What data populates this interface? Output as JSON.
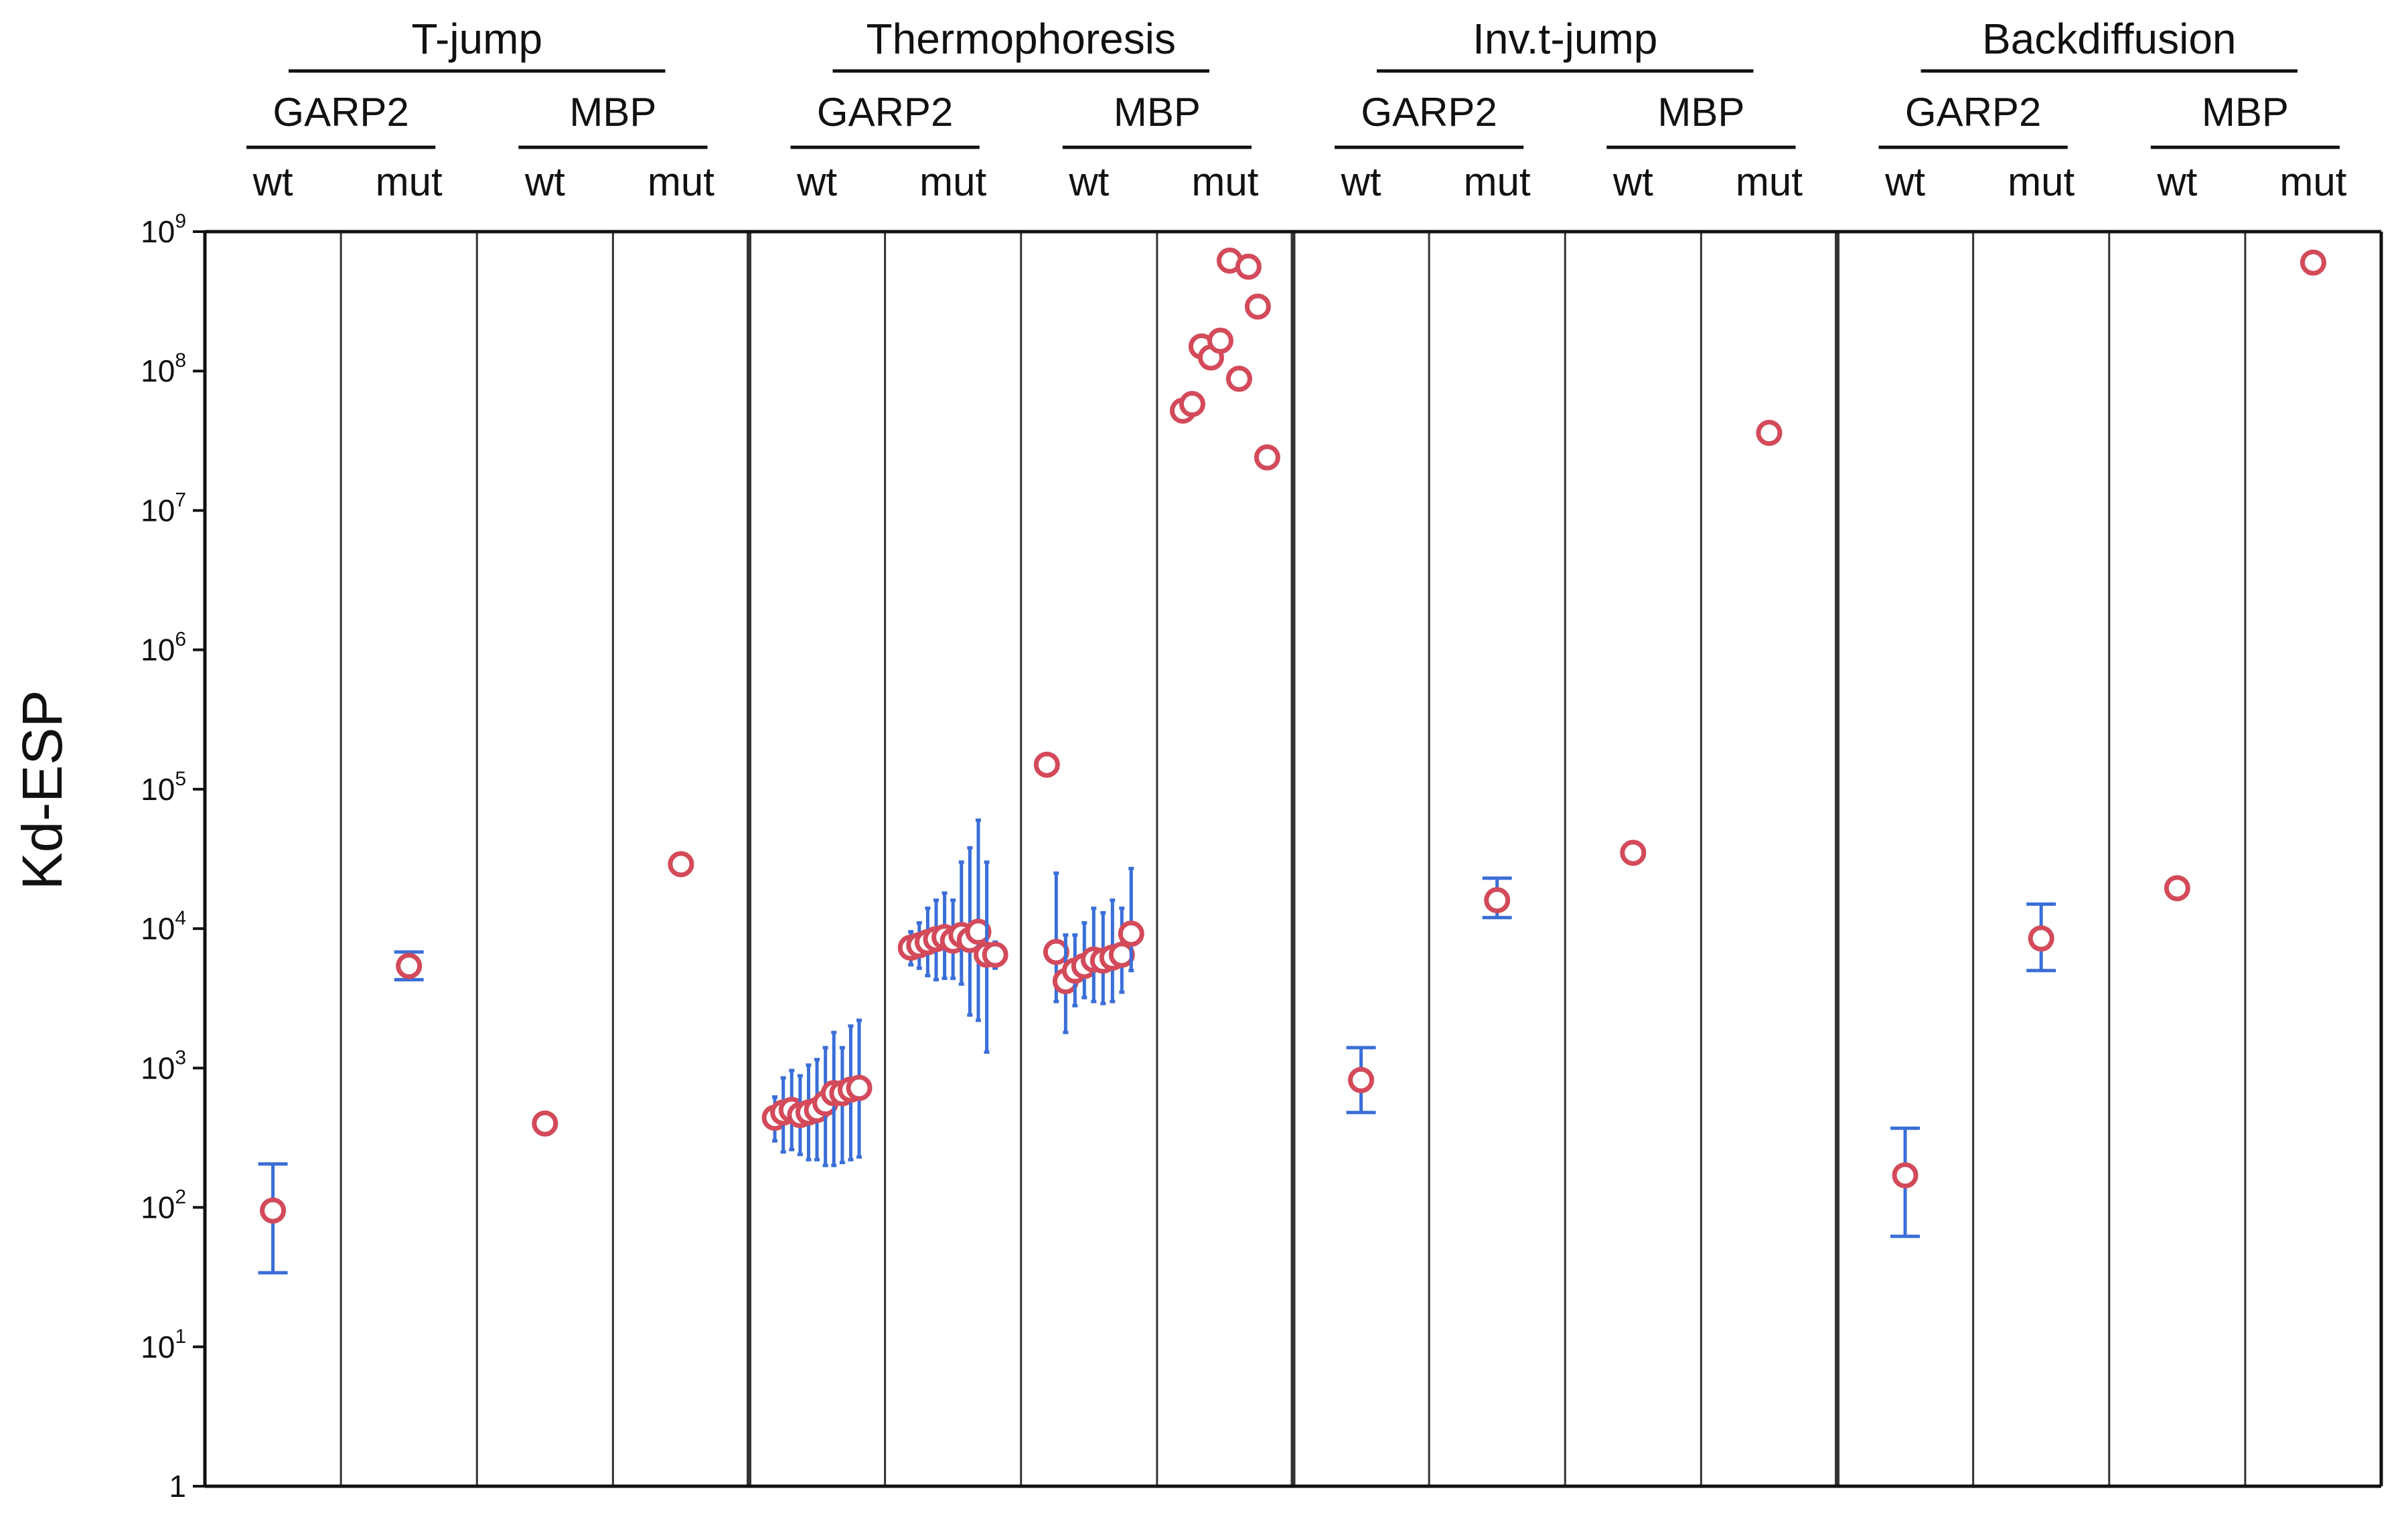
{
  "chart_data": {
    "type": "scatter",
    "title": "",
    "xlabel": "",
    "ylabel": "Kd-ESP",
    "yscale": "log10",
    "ylim": [
      1,
      1000000000
    ],
    "yticks": [
      {
        "value": 1,
        "base": "1",
        "exp": ""
      },
      {
        "value": 10,
        "base": "10",
        "exp": "1"
      },
      {
        "value": 100,
        "base": "10",
        "exp": "2"
      },
      {
        "value": 1000,
        "base": "10",
        "exp": "3"
      },
      {
        "value": 10000,
        "base": "10",
        "exp": "4"
      },
      {
        "value": 100000,
        "base": "10",
        "exp": "5"
      },
      {
        "value": 1000000,
        "base": "10",
        "exp": "6"
      },
      {
        "value": 10000000,
        "base": "10",
        "exp": "7"
      },
      {
        "value": 100000000,
        "base": "10",
        "exp": "8"
      },
      {
        "value": 1000000000,
        "base": "10",
        "exp": "9"
      }
    ],
    "colors": {
      "marker": "#d34a5a",
      "errorbar": "#3a6ed8",
      "axis": "#111111",
      "separator": "#333333"
    },
    "methods": [
      {
        "name": "T-jump",
        "proteins": [
          {
            "name": "GARP2",
            "variants": [
              {
                "label": "wt",
                "points": [
                  {
                    "y": 95,
                    "lo": 34,
                    "hi": 205
                  }
                ]
              },
              {
                "label": "mut",
                "points": [
                  {
                    "y": 5400,
                    "lo": 4300,
                    "hi": 6800
                  }
                ]
              }
            ]
          },
          {
            "name": "MBP",
            "variants": [
              {
                "label": "wt",
                "points": [
                  {
                    "y": 400
                  }
                ]
              },
              {
                "label": "mut",
                "points": [
                  {
                    "y": 29000
                  }
                ]
              }
            ]
          }
        ]
      },
      {
        "name": "Thermophoresis",
        "proteins": [
          {
            "name": "GARP2",
            "variants": [
              {
                "label": "wt",
                "points": [
                  {
                    "y": 440,
                    "lo": 300,
                    "hi": 620
                  },
                  {
                    "y": 480,
                    "lo": 250,
                    "hi": 850
                  },
                  {
                    "y": 500,
                    "lo": 260,
                    "hi": 960
                  },
                  {
                    "y": 460,
                    "lo": 240,
                    "hi": 880
                  },
                  {
                    "y": 480,
                    "lo": 220,
                    "hi": 1050
                  },
                  {
                    "y": 500,
                    "lo": 220,
                    "hi": 1150
                  },
                  {
                    "y": 560,
                    "lo": 200,
                    "hi": 1400
                  },
                  {
                    "y": 660,
                    "lo": 200,
                    "hi": 1800
                  },
                  {
                    "y": 660,
                    "lo": 210,
                    "hi": 1400
                  },
                  {
                    "y": 700,
                    "lo": 220,
                    "hi": 2000
                  },
                  {
                    "y": 720,
                    "lo": 230,
                    "hi": 2200
                  }
                ]
              },
              {
                "label": "mut",
                "points": [
                  {
                    "y": 7300,
                    "lo": 5500,
                    "hi": 9500
                  },
                  {
                    "y": 7600,
                    "lo": 5200,
                    "hi": 11000
                  },
                  {
                    "y": 8000,
                    "lo": 4600,
                    "hi": 14000
                  },
                  {
                    "y": 8400,
                    "lo": 4300,
                    "hi": 16000
                  },
                  {
                    "y": 8700,
                    "lo": 4400,
                    "hi": 18000
                  },
                  {
                    "y": 8200,
                    "lo": 4400,
                    "hi": 16000
                  },
                  {
                    "y": 9000,
                    "lo": 4000,
                    "hi": 30000
                  },
                  {
                    "y": 8300,
                    "lo": 2400,
                    "hi": 38000
                  },
                  {
                    "y": 9500,
                    "lo": 2200,
                    "hi": 60000
                  },
                  {
                    "y": 6500,
                    "lo": 1300,
                    "hi": 30000
                  },
                  {
                    "y": 6500,
                    "lo": 5200,
                    "hi": 8000
                  }
                ]
              }
            ]
          },
          {
            "name": "MBP",
            "variants": [
              {
                "label": "wt",
                "points": [
                  {
                    "y": 150000
                  },
                  {
                    "y": 6800,
                    "lo": 3000,
                    "hi": 25000
                  },
                  {
                    "y": 4200,
                    "lo": 1800,
                    "hi": 9000
                  },
                  {
                    "y": 5000,
                    "lo": 2800,
                    "hi": 9000
                  },
                  {
                    "y": 5400,
                    "lo": 3200,
                    "hi": 11000
                  },
                  {
                    "y": 6000,
                    "lo": 3000,
                    "hi": 14000
                  },
                  {
                    "y": 5900,
                    "lo": 2900,
                    "hi": 13000
                  },
                  {
                    "y": 6200,
                    "lo": 3000,
                    "hi": 16000
                  },
                  {
                    "y": 6500,
                    "lo": 3500,
                    "hi": 14000
                  },
                  {
                    "y": 9200,
                    "lo": 5000,
                    "hi": 27000
                  }
                ]
              },
              {
                "label": "mut",
                "points": [
                  {
                    "y": 52000000
                  },
                  {
                    "y": 58000000
                  },
                  {
                    "y": 150000000
                  },
                  {
                    "y": 125000000
                  },
                  {
                    "y": 165000000
                  },
                  {
                    "y": 620000000
                  },
                  {
                    "y": 88000000
                  },
                  {
                    "y": 560000000
                  },
                  {
                    "y": 290000000
                  },
                  {
                    "y": 24000000
                  }
                ]
              }
            ]
          }
        ]
      },
      {
        "name": "Inv.t-jump",
        "proteins": [
          {
            "name": "GARP2",
            "variants": [
              {
                "label": "wt",
                "points": [
                  {
                    "y": 820,
                    "lo": 480,
                    "hi": 1400
                  }
                ]
              },
              {
                "label": "mut",
                "points": [
                  {
                    "y": 16000,
                    "lo": 12000,
                    "hi": 23000
                  }
                ]
              }
            ]
          },
          {
            "name": "MBP",
            "variants": [
              {
                "label": "wt",
                "points": [
                  {
                    "y": 35000
                  }
                ]
              },
              {
                "label": "mut",
                "points": [
                  {
                    "y": 36000000
                  }
                ]
              }
            ]
          }
        ]
      },
      {
        "name": "Backdiffusion",
        "proteins": [
          {
            "name": "GARP2",
            "variants": [
              {
                "label": "wt",
                "points": [
                  {
                    "y": 170,
                    "lo": 62,
                    "hi": 370
                  }
                ]
              },
              {
                "label": "mut",
                "points": [
                  {
                    "y": 8500,
                    "lo": 5000,
                    "hi": 15000
                  }
                ]
              }
            ]
          },
          {
            "name": "MBP",
            "variants": [
              {
                "label": "wt",
                "points": [
                  {
                    "y": 19500
                  }
                ]
              },
              {
                "label": "mut",
                "points": [
                  {
                    "y": 600000000
                  }
                ]
              }
            ]
          }
        ]
      }
    ]
  }
}
